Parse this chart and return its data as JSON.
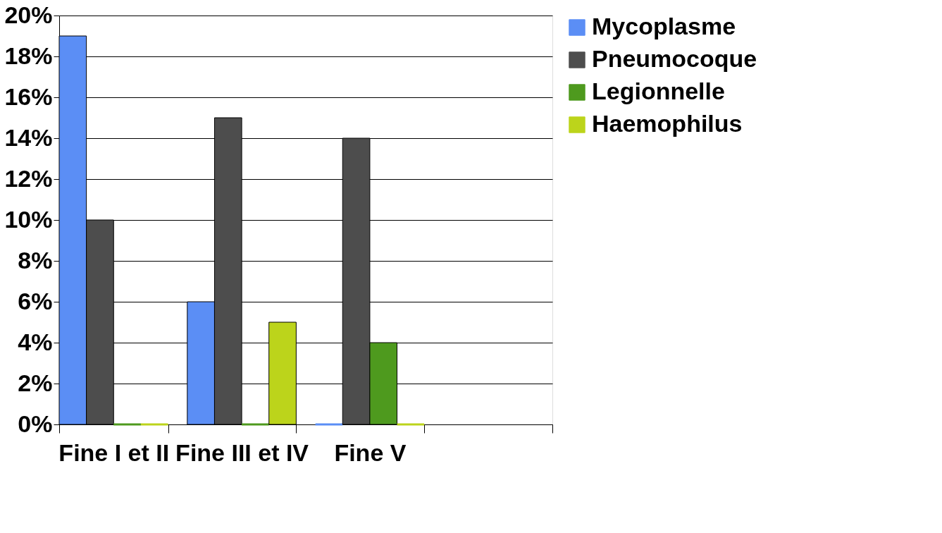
{
  "chart_data": {
    "type": "bar",
    "categories": [
      "Fine I et II",
      "Fine III et IV",
      "Fine V",
      null
    ],
    "series": [
      {
        "name": "Mycoplasme",
        "color": "#5b8ef5",
        "values": [
          19,
          6,
          0,
          null
        ]
      },
      {
        "name": "Pneumocoque",
        "color": "#4d4d4d",
        "values": [
          10,
          15,
          14,
          null
        ]
      },
      {
        "name": "Legionnelle",
        "color": "#4e9a1e",
        "values": [
          0,
          0,
          4,
          null
        ]
      },
      {
        "name": "Haemophilus",
        "color": "#bcd41b",
        "values": [
          0,
          5,
          0,
          null
        ]
      }
    ],
    "ylim": [
      0,
      20
    ],
    "yticks": [
      {
        "value": 0,
        "label": "0%"
      },
      {
        "value": 2,
        "label": "2%"
      },
      {
        "value": 4,
        "label": "4%"
      },
      {
        "value": 6,
        "label": "6%"
      },
      {
        "value": 8,
        "label": "8%"
      },
      {
        "value": 10,
        "label": "10%"
      },
      {
        "value": 12,
        "label": "12%"
      },
      {
        "value": 14,
        "label": "14%"
      },
      {
        "value": 16,
        "label": "16%"
      },
      {
        "value": 18,
        "label": "18%"
      },
      {
        "value": 20,
        "label": "20%"
      }
    ],
    "grid": "y",
    "legend": "right"
  }
}
